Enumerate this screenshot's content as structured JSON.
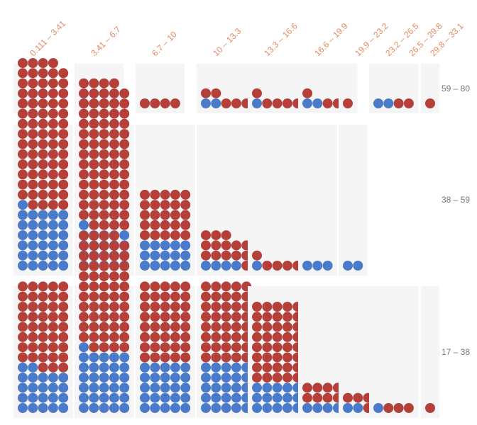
{
  "chart_data": {
    "type": "waffle",
    "title": "",
    "columns": [
      "0.111 – 3.41",
      "3.41 – 6.7",
      "6.7 – 10",
      "10 – 13.3",
      "13.3 – 16.6",
      "16.6 – 19.9",
      "19.9 – 23.2",
      "23.2 – 26.5",
      "26.5 – 29.8",
      "29.8 – 33.1"
    ],
    "rows": [
      "59 – 80",
      "38 – 59",
      "17 – 38"
    ],
    "series": [
      {
        "color": "#b5403a"
      },
      {
        "color": "#4a7bcb"
      }
    ],
    "cells": [
      [
        [
          2,
          0
        ],
        [
          3,
          1
        ],
        [
          4,
          0
        ],
        [
          5,
          2
        ],
        [
          5,
          1
        ],
        [
          4,
          2
        ],
        [
          1,
          0
        ],
        [
          2,
          2
        ],
        [
          0,
          0
        ],
        [
          1,
          0
        ]
      ],
      [
        [
          73,
          31
        ],
        [
          73,
          21
        ],
        [
          25,
          15
        ],
        [
          14,
          4
        ],
        [
          5,
          1
        ],
        [
          0,
          3
        ],
        [
          0,
          2
        ],
        [
          0,
          0
        ],
        [
          0,
          0
        ],
        [
          0,
          0
        ]
      ],
      [
        [
          43,
          22
        ],
        [
          58,
          31
        ],
        [
          40,
          25
        ],
        [
          40,
          25
        ],
        [
          40,
          15
        ],
        [
          11,
          4
        ],
        [
          6,
          2
        ],
        [
          3,
          1
        ],
        [
          0,
          0
        ],
        [
          1,
          0
        ]
      ]
    ],
    "legend": "none",
    "grid": false,
    "label_color": "#e5895f",
    "row_label_color": "#777777",
    "panel_color": "#f5f5f6"
  }
}
